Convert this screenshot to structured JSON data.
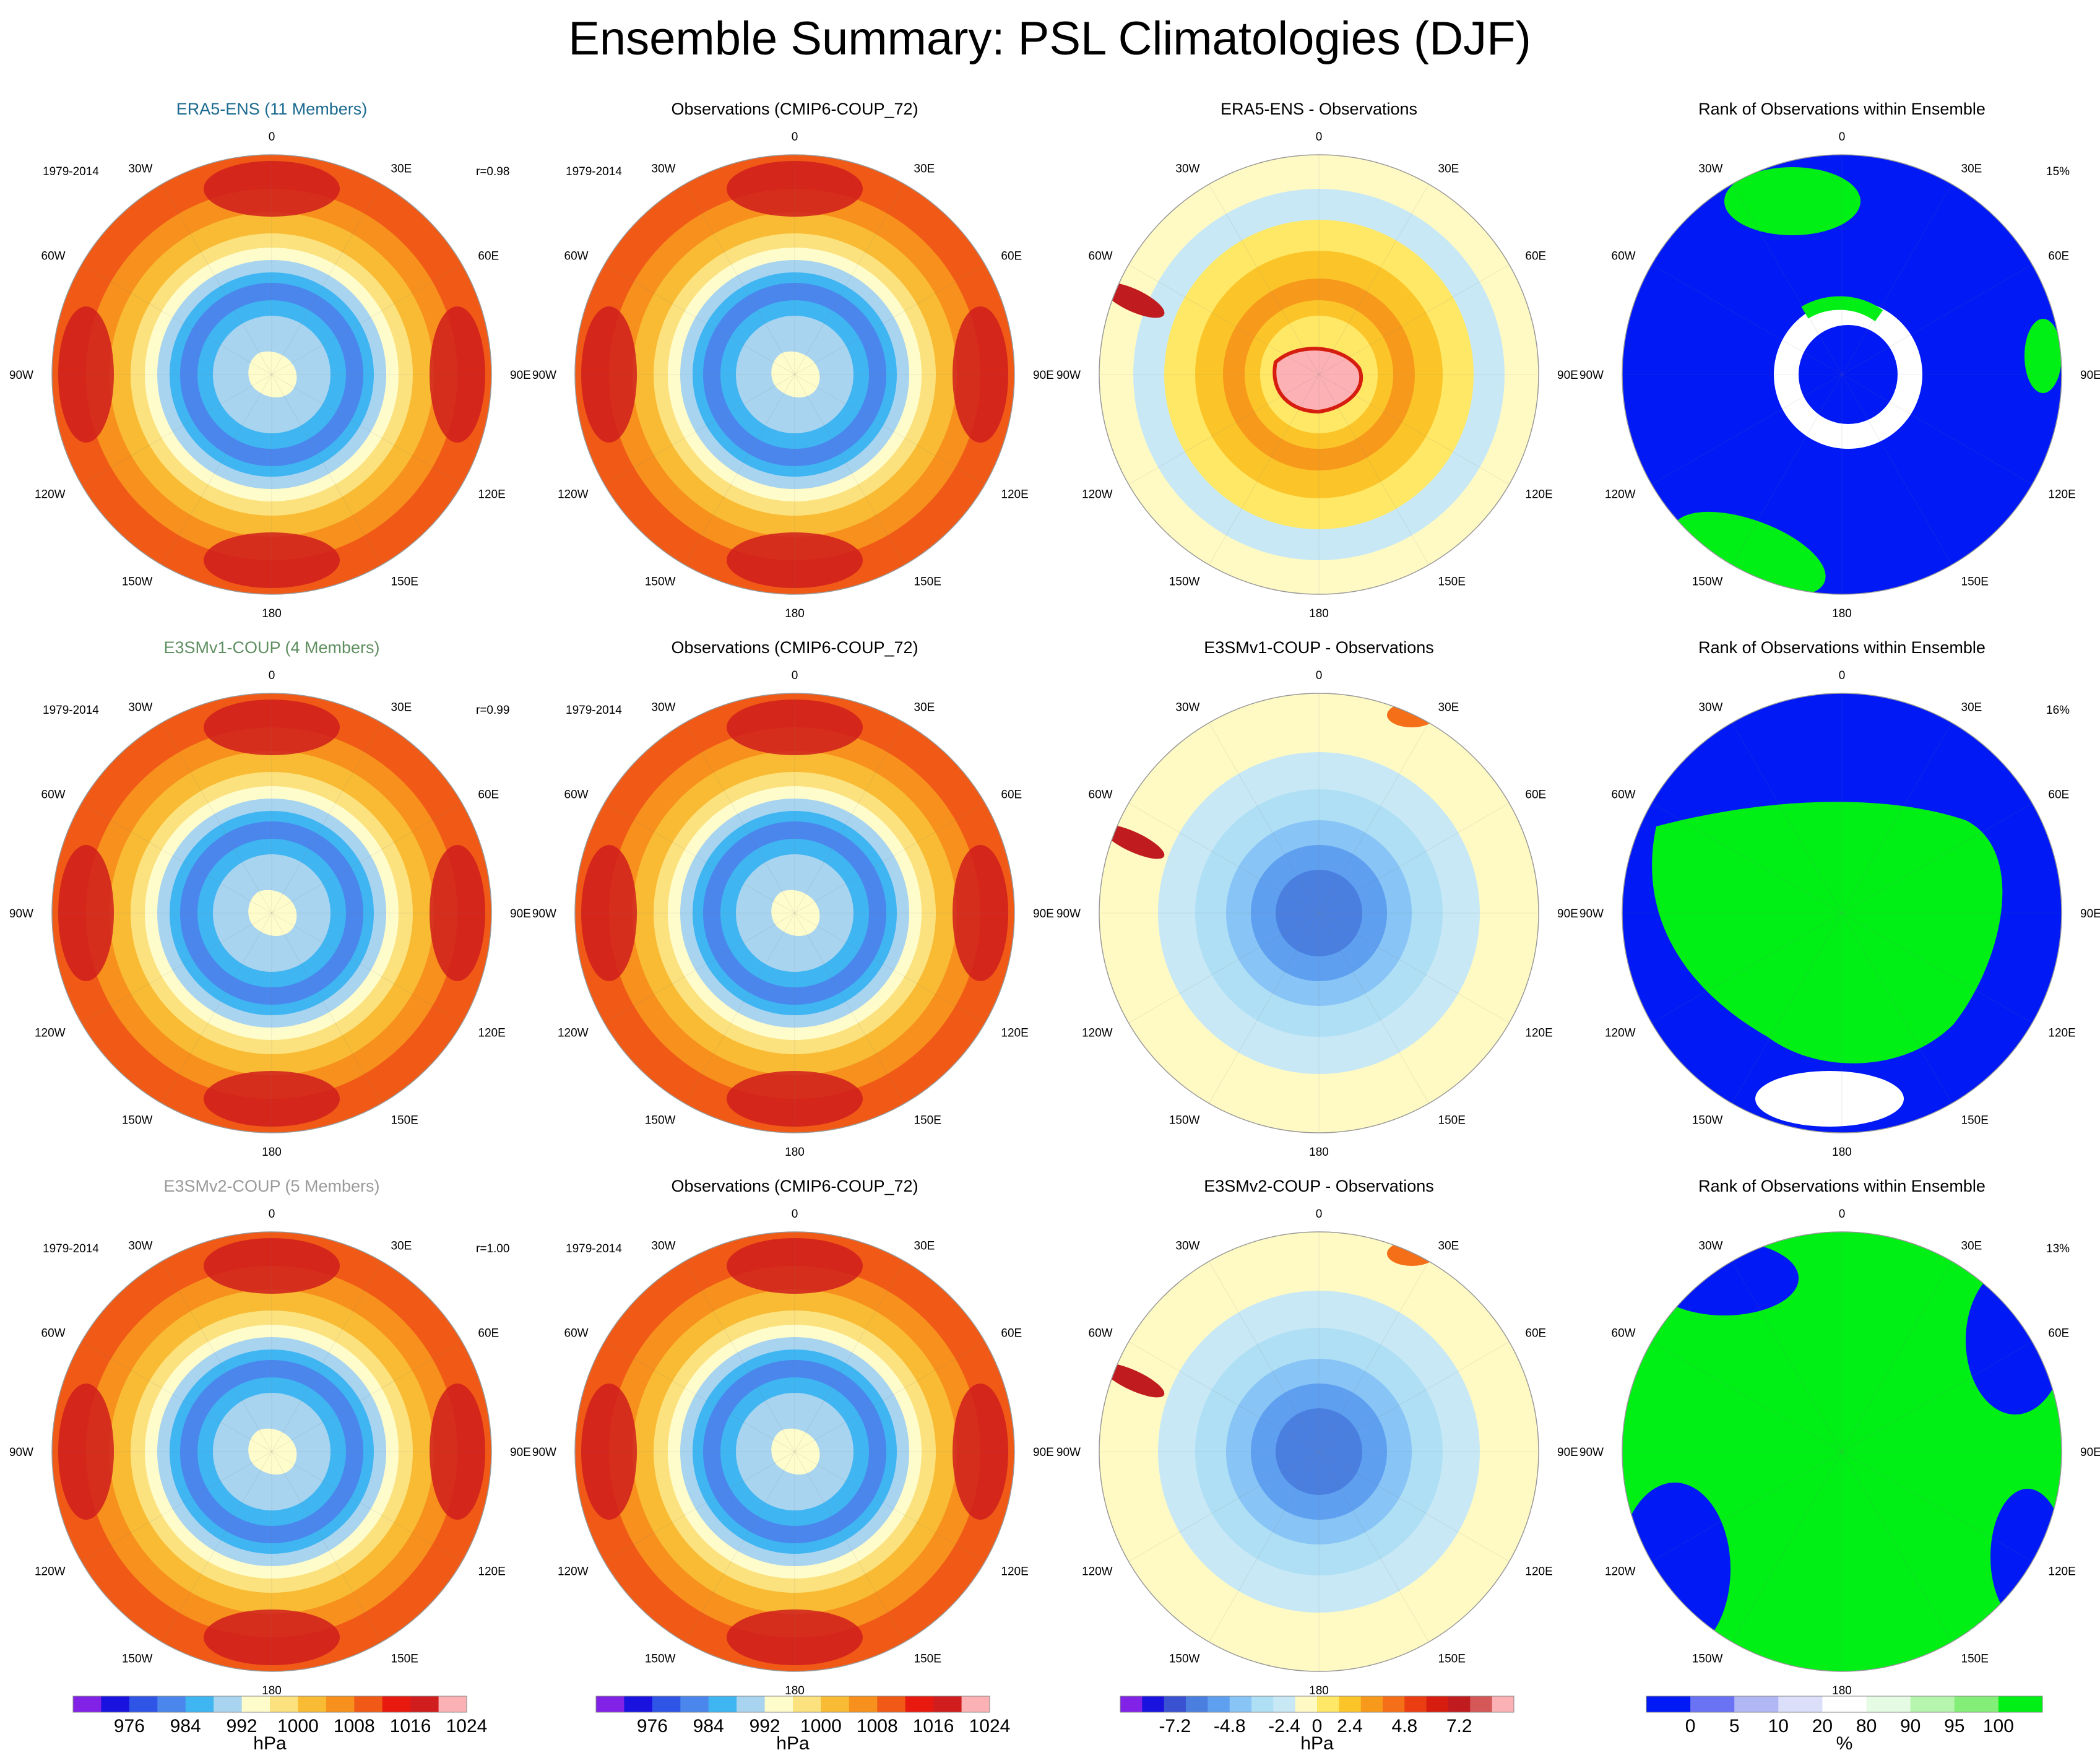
{
  "page_title": "Ensemble Summary: PSL Climatologies (DJF)",
  "colors": {
    "psl": [
      "#8122e6",
      "#1a12df",
      "#2f55e6",
      "#4a86ec",
      "#3fb5f2",
      "#a8d4ef",
      "#fffccc",
      "#fbe27e",
      "#f8bb33",
      "#f7901d",
      "#f05a16",
      "#e8190f",
      "#d01d1d",
      "#fcb1b4"
    ],
    "diff": [
      "#8122e6",
      "#1a12df",
      "#3a52d2",
      "#4a7fe0",
      "#5e9ff0",
      "#88c4f5",
      "#aedff5",
      "#c8e8f5",
      "#fffac4",
      "#ffe866",
      "#fbc52a",
      "#f79a1c",
      "#f46f17",
      "#ea3d11",
      "#d71d0f",
      "#c01c1f",
      "#d55858",
      "#fcb1b4"
    ],
    "rank": [
      "#0019f5",
      "#6a73f3",
      "#b1b6f4",
      "#dbdff9",
      "#ffffff",
      "#e6fbe3",
      "#b5f5ae",
      "#84ef78",
      "#00ef15"
    ]
  },
  "chart_data": [
    {
      "type": "heatmap",
      "panel": "r1c1",
      "title": "ERA5-ENS (11 Members)",
      "title_color": "#1b6a8f",
      "period": "1979-2014",
      "stat": "r=0.98",
      "field": "sea level pressure",
      "unit": "hPa"
    },
    {
      "type": "heatmap",
      "panel": "r1c2",
      "title": "Observations (CMIP6-COUP_72)",
      "title_color": "#000000",
      "period": "1979-2014",
      "stat": "",
      "field": "sea level pressure",
      "unit": "hPa"
    },
    {
      "type": "heatmap",
      "panel": "r1c3",
      "title": "ERA5-ENS - Observations",
      "title_color": "#000000",
      "period": "",
      "stat": "",
      "field": "difference",
      "unit": "hPa"
    },
    {
      "type": "heatmap",
      "panel": "r1c4",
      "title": "Rank of Observations within Ensemble",
      "title_color": "#000000",
      "period": "",
      "stat": "15%",
      "field": "rank",
      "unit": "%"
    },
    {
      "type": "heatmap",
      "panel": "r2c1",
      "title": "E3SMv1-COUP (4 Members)",
      "title_color": "#5f8f61",
      "period": "1979-2014",
      "stat": "r=0.99",
      "field": "sea level pressure",
      "unit": "hPa"
    },
    {
      "type": "heatmap",
      "panel": "r2c2",
      "title": "Observations (CMIP6-COUP_72)",
      "title_color": "#000000",
      "period": "1979-2014",
      "stat": "",
      "field": "sea level pressure",
      "unit": "hPa"
    },
    {
      "type": "heatmap",
      "panel": "r2c3",
      "title": "E3SMv1-COUP - Observations",
      "title_color": "#000000",
      "period": "",
      "stat": "",
      "field": "difference",
      "unit": "hPa"
    },
    {
      "type": "heatmap",
      "panel": "r2c4",
      "title": "Rank of Observations within Ensemble",
      "title_color": "#000000",
      "period": "",
      "stat": "16%",
      "field": "rank",
      "unit": "%"
    },
    {
      "type": "heatmap",
      "panel": "r3c1",
      "title": "E3SMv2-COUP (5 Members)",
      "title_color": "#9a9a9a",
      "period": "1979-2014",
      "stat": "r=1.00",
      "field": "sea level pressure",
      "unit": "hPa"
    },
    {
      "type": "heatmap",
      "panel": "r3c2",
      "title": "Observations (CMIP6-COUP_72)",
      "title_color": "#000000",
      "period": "1979-2014",
      "stat": "",
      "field": "sea level pressure",
      "unit": "hPa"
    },
    {
      "type": "heatmap",
      "panel": "r3c3",
      "title": "E3SMv2-COUP - Observations",
      "title_color": "#000000",
      "period": "",
      "stat": "",
      "field": "difference",
      "unit": "hPa"
    },
    {
      "type": "heatmap",
      "panel": "r3c4",
      "title": "Rank of Observations within Ensemble",
      "title_color": "#000000",
      "period": "",
      "stat": "13%",
      "field": "rank",
      "unit": "%"
    }
  ],
  "lon_labels": [
    "0",
    "30E",
    "60E",
    "90E",
    "120E",
    "150E",
    "180",
    "150W",
    "120W",
    "90W",
    "60W",
    "30W"
  ],
  "colorbars": [
    {
      "ticks": [
        "976",
        "984",
        "992",
        "1000",
        "1008",
        "1016",
        "1024"
      ],
      "unit": "hPa"
    },
    {
      "ticks": [
        "976",
        "984",
        "992",
        "1000",
        "1008",
        "1016",
        "1024"
      ],
      "unit": "hPa"
    },
    {
      "ticks": [
        "-7.2",
        "-4.8",
        "-2.4",
        "0",
        "2.4",
        "4.8",
        "7.2"
      ],
      "unit": "hPa"
    },
    {
      "ticks": [
        "0",
        "5",
        "10",
        "20",
        "80",
        "90",
        "95",
        "100"
      ],
      "unit": "%"
    }
  ]
}
